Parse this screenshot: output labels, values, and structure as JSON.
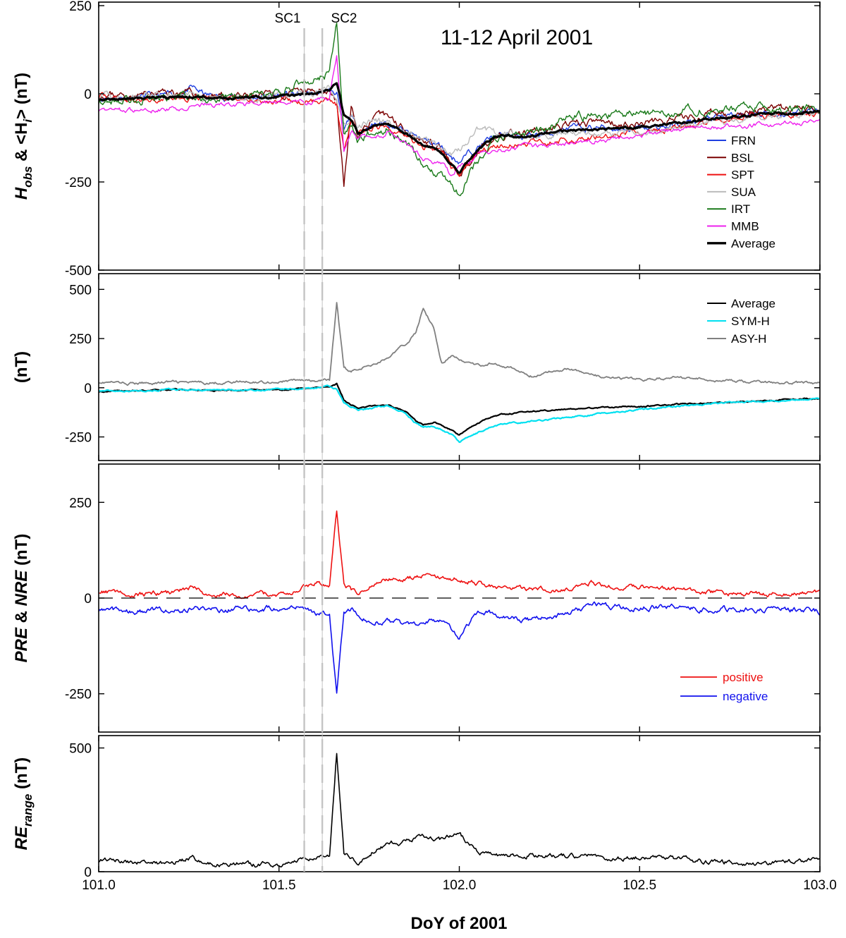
{
  "figure": {
    "title": "11-12 April 2001",
    "xlabel": "DoY of 2001",
    "sc_labels": [
      "SC1",
      "SC2"
    ],
    "sc_times": [
      101.57,
      101.62
    ]
  },
  "chart_data": [
    {
      "type": "line",
      "panel": "Hobs",
      "ylabel_parts": [
        "H",
        "obs",
        " & <H",
        "i",
        "> (nT)"
      ],
      "xlim": [
        101.0,
        103.0
      ],
      "ylim": [
        -500,
        260
      ],
      "yticks": [
        -500,
        -250,
        0,
        250
      ],
      "xticks": [
        101.0,
        101.5,
        102.0,
        102.5,
        103.0
      ],
      "legend_position": "bottom-right",
      "base_x": [
        101.0,
        101.1,
        101.2,
        101.26,
        101.3,
        101.4,
        101.5,
        101.56,
        101.6,
        101.64,
        101.66,
        101.68,
        101.7,
        101.72,
        101.75,
        101.8,
        101.85,
        101.9,
        101.95,
        101.98,
        102.0,
        102.05,
        102.1,
        102.2,
        102.3,
        102.4,
        102.5,
        102.6,
        102.7,
        102.8,
        102.9,
        103.0
      ],
      "series": [
        {
          "name": "FRN",
          "color": "#1f3fe0",
          "width": 1.4,
          "noise": 14,
          "seed": 11,
          "values": [
            -10,
            -10,
            -5,
            15,
            -5,
            -10,
            -5,
            -2,
            0,
            10,
            5,
            -110,
            -60,
            -110,
            -90,
            -80,
            -110,
            -130,
            -150,
            -180,
            -190,
            -150,
            -120,
            -120,
            -100,
            -95,
            -100,
            -90,
            -70,
            -60,
            -55,
            -45
          ]
        },
        {
          "name": "BSL",
          "color": "#7a0000",
          "width": 1.4,
          "noise": 16,
          "seed": 23,
          "values": [
            0,
            -5,
            5,
            0,
            -5,
            -10,
            -5,
            0,
            5,
            15,
            -20,
            -260,
            -40,
            -120,
            -80,
            -60,
            -100,
            -130,
            -160,
            -210,
            -240,
            -160,
            -120,
            -110,
            -90,
            -80,
            -85,
            -70,
            -60,
            -55,
            -45,
            -40
          ]
        },
        {
          "name": "SPT",
          "color": "#ee1111",
          "width": 1.4,
          "noise": 12,
          "seed": 37,
          "values": [
            -5,
            -20,
            -10,
            -20,
            -10,
            -15,
            -20,
            -25,
            -20,
            -10,
            -30,
            -160,
            -80,
            -110,
            -100,
            -90,
            -120,
            -150,
            -160,
            -210,
            -230,
            -170,
            -150,
            -140,
            -130,
            -120,
            -110,
            -100,
            -80,
            -65,
            -60,
            -55
          ]
        },
        {
          "name": "SUA",
          "color": "#bbbbbb",
          "width": 1.4,
          "noise": 14,
          "seed": 41,
          "values": [
            -10,
            -10,
            -5,
            0,
            -10,
            -10,
            -5,
            0,
            0,
            15,
            -20,
            -90,
            -60,
            -90,
            -80,
            -80,
            -110,
            -130,
            -150,
            -170,
            -160,
            -100,
            -110,
            -120,
            -110,
            -110,
            -105,
            -100,
            -80,
            -70,
            -60,
            -50
          ]
        },
        {
          "name": "IRT",
          "color": "#1a7a1a",
          "width": 1.4,
          "noise": 18,
          "seed": 53,
          "values": [
            -20,
            -15,
            -10,
            -5,
            -15,
            -10,
            -5,
            35,
            40,
            60,
            200,
            -120,
            -90,
            -130,
            -110,
            -100,
            -140,
            -200,
            -230,
            -260,
            -280,
            -190,
            -130,
            -110,
            -70,
            -60,
            -60,
            -50,
            -40,
            -40,
            -40,
            -35
          ]
        },
        {
          "name": "MMB",
          "color": "#ee22ee",
          "width": 1.4,
          "noise": 10,
          "seed": 67,
          "values": [
            -45,
            -50,
            -40,
            -35,
            -30,
            -30,
            -25,
            -25,
            -20,
            -10,
            110,
            -160,
            -100,
            -120,
            -120,
            -110,
            -140,
            -180,
            -200,
            -230,
            -210,
            -170,
            -160,
            -150,
            -140,
            -130,
            -120,
            -100,
            -95,
            -90,
            -85,
            -80
          ]
        },
        {
          "name": "Average",
          "color": "#000000",
          "width": 3.2,
          "noise": 5,
          "seed": 79,
          "values": [
            -15,
            -15,
            -10,
            -10,
            -10,
            -12,
            -10,
            -2,
            0,
            10,
            30,
            -60,
            -80,
            -110,
            -95,
            -85,
            -110,
            -145,
            -165,
            -200,
            -225,
            -160,
            -120,
            -120,
            -105,
            -100,
            -95,
            -85,
            -70,
            -60,
            -55,
            -50
          ]
        }
      ]
    },
    {
      "type": "line",
      "panel": "Indices",
      "ylabel_parts": [
        "(nT)"
      ],
      "xlim": [
        101.0,
        103.0
      ],
      "ylim": [
        -370,
        580
      ],
      "yticks": [
        -250,
        0,
        250,
        500
      ],
      "xticks": [
        101.0,
        101.5,
        102.0,
        102.5,
        103.0
      ],
      "legend_position": "top-right",
      "base_x": [
        101.0,
        101.1,
        101.2,
        101.26,
        101.3,
        101.4,
        101.5,
        101.56,
        101.6,
        101.64,
        101.66,
        101.68,
        101.7,
        101.72,
        101.75,
        101.8,
        101.85,
        101.88,
        101.9,
        101.93,
        101.95,
        101.98,
        102.0,
        102.05,
        102.1,
        102.2,
        102.3,
        102.4,
        102.5,
        102.6,
        102.7,
        102.8,
        102.9,
        103.0
      ],
      "series": [
        {
          "name": "Average",
          "color": "#000000",
          "width": 2.2,
          "noise": 5,
          "seed": 83,
          "values": [
            -20,
            -15,
            -10,
            -8,
            -15,
            -12,
            -10,
            -5,
            0,
            5,
            20,
            -60,
            -90,
            -100,
            -95,
            -85,
            -120,
            -170,
            -190,
            -175,
            -190,
            -215,
            -240,
            -180,
            -140,
            -120,
            -110,
            -100,
            -95,
            -85,
            -75,
            -70,
            -62,
            -55
          ]
        },
        {
          "name": "SYM-H",
          "color": "#00e0f0",
          "width": 2.2,
          "noise": 6,
          "seed": 97,
          "values": [
            -15,
            -15,
            -10,
            -10,
            -12,
            -12,
            -10,
            -5,
            0,
            5,
            -10,
            -80,
            -100,
            -110,
            -105,
            -90,
            -130,
            -180,
            -200,
            -195,
            -210,
            -240,
            -275,
            -230,
            -190,
            -170,
            -150,
            -130,
            -110,
            -95,
            -80,
            -70,
            -65,
            -55
          ]
        },
        {
          "name": "ASY-H",
          "color": "#808080",
          "width": 1.8,
          "noise": 10,
          "seed": 101,
          "values": [
            30,
            20,
            30,
            25,
            25,
            30,
            30,
            40,
            30,
            40,
            430,
            100,
            80,
            100,
            110,
            150,
            220,
            280,
            410,
            300,
            130,
            160,
            140,
            110,
            130,
            60,
            100,
            50,
            40,
            55,
            40,
            30,
            25,
            25
          ]
        }
      ]
    },
    {
      "type": "line",
      "panel": "PRE_NRE",
      "ylabel_parts": [
        "PRE",
        " & ",
        "NRE",
        " (nT)"
      ],
      "xlim": [
        101.0,
        103.0
      ],
      "ylim": [
        -350,
        350
      ],
      "yticks": [
        -250,
        0,
        250
      ],
      "xticks": [
        101.0,
        101.5,
        102.0,
        102.5,
        103.0
      ],
      "legend_position": "bottom-right",
      "base_x": [
        101.0,
        101.1,
        101.2,
        101.26,
        101.3,
        101.4,
        101.5,
        101.56,
        101.6,
        101.64,
        101.66,
        101.68,
        101.7,
        101.72,
        101.75,
        101.8,
        101.85,
        101.9,
        101.95,
        102.0,
        102.05,
        102.1,
        102.2,
        102.3,
        102.37,
        102.4,
        102.5,
        102.6,
        102.7,
        102.8,
        102.9,
        103.0
      ],
      "series": [
        {
          "name": "positive",
          "color": "#ee1111",
          "width": 1.6,
          "noise": 9,
          "seed": 109,
          "values": [
            18,
            10,
            15,
            30,
            10,
            10,
            10,
            25,
            40,
            35,
            230,
            40,
            20,
            15,
            30,
            50,
            50,
            60,
            50,
            50,
            40,
            30,
            25,
            20,
            40,
            30,
            30,
            25,
            15,
            10,
            10,
            15
          ]
        },
        {
          "name": "negative",
          "color": "#1111ee",
          "width": 1.6,
          "noise": 10,
          "seed": 113,
          "values": [
            -30,
            -35,
            -30,
            -30,
            -30,
            -30,
            -25,
            -20,
            -40,
            -40,
            -250,
            -40,
            -30,
            -40,
            -60,
            -60,
            -70,
            -60,
            -60,
            -100,
            -40,
            -40,
            -60,
            -40,
            -20,
            -20,
            -25,
            -25,
            -30,
            -30,
            -30,
            -35
          ]
        },
        {
          "name": "zero",
          "color": "#000000",
          "width": 1.2,
          "dash": "20 12",
          "noise": 0,
          "seed": 0,
          "show_in_legend": false,
          "values": [
            0,
            0,
            0,
            0,
            0,
            0,
            0,
            0,
            0,
            0,
            0,
            0,
            0,
            0,
            0,
            0,
            0,
            0,
            0,
            0,
            0,
            0,
            0,
            0,
            0,
            0,
            0,
            0,
            0,
            0,
            0,
            0
          ]
        }
      ]
    },
    {
      "type": "line",
      "panel": "REr",
      "ylabel_parts": [
        "RE",
        "range",
        " (nT)"
      ],
      "xlim": [
        101.0,
        103.0
      ],
      "ylim": [
        0,
        550
      ],
      "yticks": [
        0,
        500
      ],
      "xticks": [
        101.0,
        101.5,
        102.0,
        102.5,
        103.0
      ],
      "x_tick_labels": [
        "101.0",
        "101.5",
        "102.0",
        "102.5",
        "103.0"
      ],
      "base_x": [
        101.0,
        101.1,
        101.2,
        101.26,
        101.3,
        101.4,
        101.5,
        101.56,
        101.6,
        101.64,
        101.66,
        101.68,
        101.7,
        101.72,
        101.75,
        101.8,
        101.85,
        101.9,
        101.95,
        102.0,
        102.05,
        102.1,
        102.2,
        102.3,
        102.37,
        102.4,
        102.5,
        102.6,
        102.7,
        102.8,
        102.9,
        103.0
      ],
      "series": [
        {
          "name": "RE range",
          "color": "#000000",
          "width": 1.6,
          "noise": 14,
          "seed": 127,
          "show_in_legend": false,
          "values": [
            45,
            40,
            35,
            55,
            30,
            30,
            30,
            45,
            60,
            60,
            480,
            80,
            50,
            40,
            80,
            110,
            120,
            140,
            130,
            150,
            80,
            60,
            70,
            60,
            70,
            50,
            60,
            50,
            40,
            35,
            35,
            45
          ]
        }
      ]
    }
  ]
}
